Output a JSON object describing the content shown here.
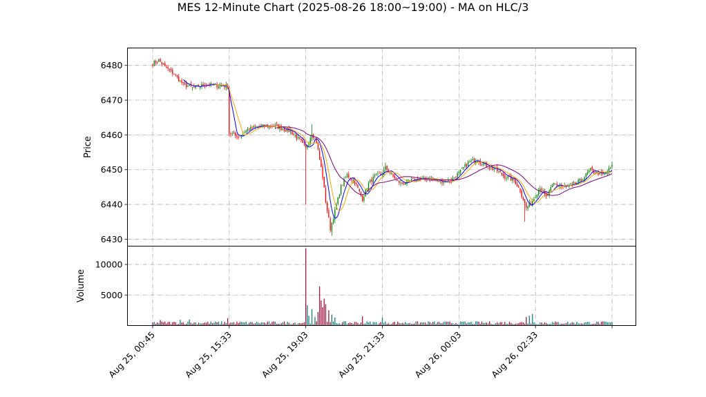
{
  "chart_data": {
    "type": "candlestick",
    "title": "MES 12-Minute Chart (2025-08-26 18:00~19:00) - MA on HLC/3",
    "price_panel": {
      "ylabel": "Price",
      "ylim": [
        6428,
        6485
      ],
      "yticks": [
        "6430",
        "6440",
        "6450",
        "6460",
        "6470",
        "6480"
      ],
      "grid": true
    },
    "volume_panel": {
      "ylabel": "Volume",
      "ylim": [
        0,
        13000
      ],
      "yticks": [
        "5000",
        "10000"
      ],
      "grid": true
    },
    "x_ticks": [
      {
        "i": 0,
        "label": "Aug 25, 00:45"
      },
      {
        "i": 50,
        "label": "Aug 25, 15:33"
      },
      {
        "i": 100,
        "label": "Aug 25, 19:03"
      },
      {
        "i": 150,
        "label": "Aug 25, 21:33"
      },
      {
        "i": 200,
        "label": "Aug 26, 00:03"
      },
      {
        "i": 250,
        "label": "Aug 26, 02:33"
      },
      {
        "i": 300,
        "label": ""
      }
    ],
    "bar_count": 301,
    "close_anchors": [
      [
        0,
        6480.5
      ],
      [
        4,
        6481.5
      ],
      [
        8,
        6479.5
      ],
      [
        14,
        6477.5
      ],
      [
        20,
        6474.5
      ],
      [
        26,
        6473.5
      ],
      [
        30,
        6474.0
      ],
      [
        35,
        6474.5
      ],
      [
        49,
        6474.0
      ],
      [
        50,
        6460.5
      ],
      [
        56,
        6459.5
      ],
      [
        62,
        6461.5
      ],
      [
        70,
        6462.5
      ],
      [
        80,
        6462.5
      ],
      [
        90,
        6461.0
      ],
      [
        96,
        6458.5
      ],
      [
        100,
        6456.0
      ],
      [
        104,
        6460.5
      ],
      [
        107,
        6458.0
      ],
      [
        111,
        6448.0
      ],
      [
        113,
        6441.0
      ],
      [
        116,
        6433.0
      ],
      [
        119,
        6438.0
      ],
      [
        123,
        6445.0
      ],
      [
        127,
        6448.5
      ],
      [
        132,
        6446.5
      ],
      [
        137,
        6441.5
      ],
      [
        141,
        6446.0
      ],
      [
        145,
        6448.0
      ],
      [
        150,
        6449.0
      ],
      [
        152,
        6450.5
      ],
      [
        157,
        6448.0
      ],
      [
        162,
        6446.0
      ],
      [
        170,
        6447.0
      ],
      [
        180,
        6447.5
      ],
      [
        188,
        6446.5
      ],
      [
        195,
        6447.0
      ],
      [
        200,
        6449.0
      ],
      [
        206,
        6452.0
      ],
      [
        212,
        6453.0
      ],
      [
        218,
        6451.0
      ],
      [
        224,
        6450.0
      ],
      [
        230,
        6448.0
      ],
      [
        236,
        6447.0
      ],
      [
        240,
        6444.0
      ],
      [
        244,
        6439.0
      ],
      [
        248,
        6441.0
      ],
      [
        253,
        6445.0
      ],
      [
        257,
        6442.0
      ],
      [
        262,
        6446.0
      ],
      [
        268,
        6445.0
      ],
      [
        274,
        6445.5
      ],
      [
        280,
        6447.0
      ],
      [
        286,
        6450.0
      ],
      [
        290,
        6449.0
      ],
      [
        295,
        6448.5
      ],
      [
        300,
        6451.0
      ]
    ],
    "volume_spikes": [
      {
        "i": 100,
        "v": 12600
      },
      {
        "i": 101,
        "v": 3300
      },
      {
        "i": 102,
        "v": 1600
      },
      {
        "i": 104,
        "v": 2700
      },
      {
        "i": 106,
        "v": 1400
      },
      {
        "i": 108,
        "v": 2200
      },
      {
        "i": 109,
        "v": 6400
      },
      {
        "i": 110,
        "v": 4100
      },
      {
        "i": 111,
        "v": 3000
      },
      {
        "i": 112,
        "v": 4400
      },
      {
        "i": 113,
        "v": 3500
      },
      {
        "i": 115,
        "v": 2500
      },
      {
        "i": 117,
        "v": 1800
      },
      {
        "i": 119,
        "v": 1300
      },
      {
        "i": 137,
        "v": 1500
      },
      {
        "i": 150,
        "v": 1300
      },
      {
        "i": 244,
        "v": 1400
      },
      {
        "i": 246,
        "v": 1600
      },
      {
        "i": 248,
        "v": 1900
      },
      {
        "i": 49,
        "v": 1200
      },
      {
        "i": 5,
        "v": 900
      },
      {
        "i": 18,
        "v": 950
      },
      {
        "i": 24,
        "v": 1000
      }
    ],
    "series": [
      {
        "color": "#0000ff",
        "period": 6
      },
      {
        "color": "#ffa500",
        "period": 10
      },
      {
        "color": "#800080",
        "period": 24
      }
    ],
    "up_color": "#008000",
    "down_color": "#ff0000",
    "vol_up_color": "#1a8080",
    "vol_down_color": "#a01c44"
  }
}
